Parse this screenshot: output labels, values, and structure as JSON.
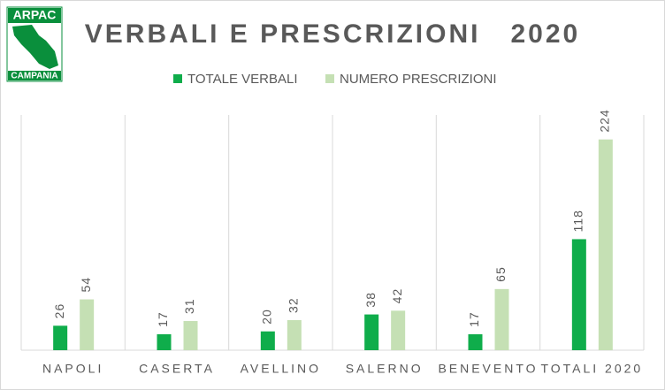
{
  "logo": {
    "top": "ARPAC",
    "bottom": "CAMPANIA"
  },
  "chart_data": {
    "type": "bar",
    "title": "VERBALI E PRESCRIZIONI   2020",
    "categories": [
      "NAPOLI",
      "CASERTA",
      "AVELLINO",
      "SALERNO",
      "BENEVENTO",
      "TOTALI 2020"
    ],
    "series": [
      {
        "name": "TOTALE VERBALI",
        "color": "#0fad4b",
        "values": [
          26,
          17,
          20,
          38,
          17,
          118
        ]
      },
      {
        "name": "NUMERO PRESCRIZIONI",
        "color": "#c5e0b4",
        "values": [
          54,
          31,
          32,
          42,
          65,
          224
        ]
      }
    ],
    "ylim": [
      0,
      250
    ],
    "legend": "top",
    "grid": false
  }
}
